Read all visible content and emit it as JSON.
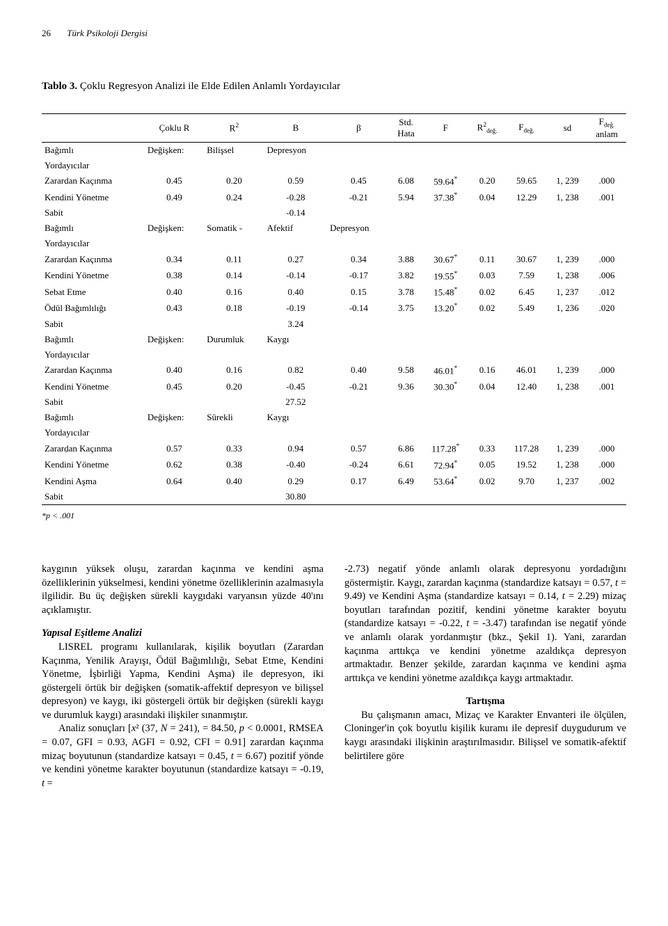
{
  "header": {
    "page_number": "26",
    "journal": "Türk Psikoloji Dergisi"
  },
  "table": {
    "title_label": "Tablo 3.",
    "title_text": "Çoklu Regresyon Analizi ile Elde Edilen Anlamlı Yordayıcılar",
    "columns": [
      "",
      "Çoklu R",
      "R²",
      "B",
      "β",
      "Std. Hata",
      "F",
      "R² değ.",
      "F değ.",
      "sd",
      "F değ. anlam"
    ],
    "dep_label": "Bağımlı",
    "var_label": "Değişken:",
    "pred_label": "Yordayıcılar",
    "sabit_label": "Sabit",
    "groups": [
      {
        "dep_terms": [
          "Bilişsel",
          "Depresyon"
        ],
        "rows": [
          {
            "label": "Zarardan Kaçınma",
            "cells": [
              "0.45",
              "0.20",
              "0.59",
              "0.45",
              "6.08",
              "59.64 *",
              "0.20",
              "59.65",
              "1, 239",
              ".000"
            ]
          },
          {
            "label": "Kendini Yönetme",
            "cells": [
              "0.49",
              "0.24",
              "-0.28",
              "-0.21",
              "5.94",
              "37.38 *",
              "0.04",
              "12.29",
              "1, 238",
              ".001"
            ]
          }
        ],
        "sabit": "-0.14"
      },
      {
        "dep_terms": [
          "Somatik -",
          "Afektif",
          "Depresyon"
        ],
        "rows": [
          {
            "label": "Zarardan Kaçınma",
            "cells": [
              "0.34",
              "0.11",
              "0.27",
              "0.34",
              "3.88",
              "30.67 *",
              "0.11",
              "30.67",
              "1, 239",
              ".000"
            ]
          },
          {
            "label": "Kendini Yönetme",
            "cells": [
              "0.38",
              "0.14",
              "-0.14",
              "-0.17",
              "3.82",
              "19.55 *",
              "0.03",
              "7.59",
              "1, 238",
              ".006"
            ]
          },
          {
            "label": "Sebat Etme",
            "cells": [
              "0.40",
              "0.16",
              "0.40",
              "0.15",
              "3.78",
              "15.48 *",
              "0.02",
              "6.45",
              "1, 237",
              ".012"
            ]
          },
          {
            "label": "Ödül Bağımlılığı",
            "cells": [
              "0.43",
              "0.18",
              "-0.19",
              "-0.14",
              "3.75",
              "13.20 *",
              "0.02",
              "5.49",
              "1, 236",
              ".020"
            ]
          }
        ],
        "sabit": "3.24"
      },
      {
        "dep_terms": [
          "Durumluk",
          "Kaygı"
        ],
        "rows": [
          {
            "label": "Zarardan Kaçınma",
            "cells": [
              "0.40",
              "0.16",
              "0.82",
              "0.40",
              "9.58",
              "46.01 *",
              "0.16",
              "46.01",
              "1, 239",
              ".000"
            ]
          },
          {
            "label": "Kendini Yönetme",
            "cells": [
              "0.45",
              "0.20",
              "-0.45",
              "-0.21",
              "9.36",
              "30.30 *",
              "0.04",
              "12.40",
              "1, 238",
              ".001"
            ]
          }
        ],
        "sabit": "27.52"
      },
      {
        "dep_terms": [
          "Sürekli",
          "Kaygı"
        ],
        "rows": [
          {
            "label": "Zarardan Kaçınma",
            "cells": [
              "0.57",
              "0.33",
              "0.94",
              "0.57",
              "6.86",
              "117.28 *",
              "0.33",
              "117.28",
              "1, 239",
              ".000"
            ]
          },
          {
            "label": "Kendini Yönetme",
            "cells": [
              "0.62",
              "0.38",
              "-0.40",
              "-0.24",
              "6.61",
              "72.94 *",
              "0.05",
              "19.52",
              "1, 238",
              ".000"
            ]
          },
          {
            "label": "Kendini Aşma",
            "cells": [
              "0.64",
              "0.40",
              "0.29",
              "0.17",
              "6.49",
              "53.64 *",
              "0.02",
              "9.70",
              "1, 237",
              ".002"
            ]
          }
        ],
        "sabit": "30.80"
      }
    ],
    "p_note": "*p < .001"
  },
  "body": {
    "left": {
      "p1": "kaygının yüksek oluşu, zarardan kaçınma ve kendini aşma özelliklerinin yükselmesi, kendini yönetme özelliklerinin azalmasıyla ilgilidir. Bu üç değişken sürekli kaygıdaki varyansın yüzde 40'ını açıklamıştır.",
      "h1": "Yapısal Eşitleme Analizi",
      "p2": "LISREL programı kullanılarak, kişilik boyutları (Zarardan Kaçınma, Yenilik Arayışı, Ödül Bağımlılığı, Sebat Etme, Kendini Yönetme, İşbirliği Yapma, Kendini Aşma) ile depresyon, iki göstergeli örtük bir değişken (somatik-affektif depresyon ve bilişsel depresyon) ve kaygı, iki göstergeli örtük bir değişken (sürekli kaygı ve durumluk kaygı) arasındaki ilişkiler sınanmıştır.",
      "p3a": "Analiz sonuçları [",
      "p3chi": "x",
      "p3b": "² (37, ",
      "p3N": "N",
      "p3c": " = 241), = 84.50, ",
      "p3p": "p",
      "p3d": " < 0.0001, RMSEA = 0.07, GFI = 0.93, AGFI = 0.92, CFI = 0.91] zarardan kaçınma mizaç boyutunun (standardize katsayı = 0.45, ",
      "p3t1": "t",
      "p3e": " = 6.67) pozitif yönde ve kendini yönetme karakter boyutunun (standardize katsayı = -0.19, ",
      "p3t2": "t",
      "p3f": " ="
    },
    "right": {
      "p1a": "-2.73) negatif yönde anlamlı olarak depresyonu yordadığını göstermiştir. Kaygı, zarardan kaçınma (standardize katsayı = 0.57, ",
      "p1t1": "t",
      "p1b": " = 9.49) ve Kendini Aşma (standardize katsayı = 0.14, ",
      "p1t2": "t",
      "p1c": " = 2.29) mizaç boyutları tarafından pozitif, kendini yönetme karakter boyutu (standardize katsayı = -0.22, ",
      "p1t3": "t",
      "p1d": " = -3.47) tarafından ise negatif yönde ve anlamlı olarak yordanmıştır (bkz., Şekil 1). Yani, zarardan kaçınma arttıkça ve kendini yönetme azaldıkça depresyon artmaktadır. Benzer şekilde, zarardan kaçınma ve kendini aşma arttıkça ve kendini yönetme azaldıkça kaygı artmaktadır.",
      "h1": "Tartışma",
      "p2": "Bu çalışmanın amacı, Mizaç ve Karakter Envanteri ile ölçülen, Cloninger'in çok boyutlu kişilik kuramı ile depresif duygudurum ve kaygı arasındaki ilişkinin araştırılmasıdır. Bilişsel ve somatik-afektif belirtilere göre"
    }
  }
}
